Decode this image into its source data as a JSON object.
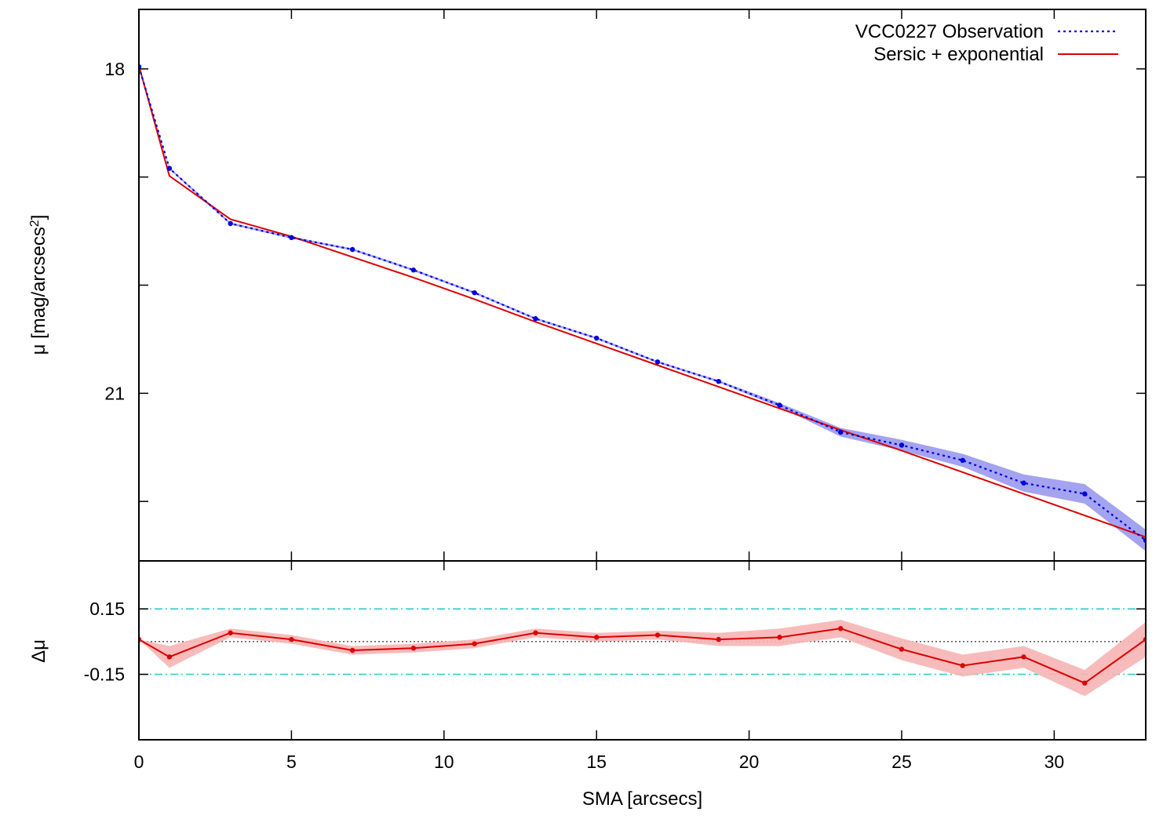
{
  "chart_data": [
    {
      "type": "line",
      "xlabel": "SMA [arcsecs]",
      "ylabel": "μ [mag/arcsecs",
      "ylabel_sup": "2",
      "ylabel_close": "]",
      "xlim": [
        0,
        33
      ],
      "ylim": [
        22.55,
        17.45
      ],
      "y_inverted": true,
      "x_ticks": [
        0,
        5,
        10,
        15,
        20,
        25,
        30
      ],
      "x_tick_labels": [
        "0",
        "5",
        "10",
        "15",
        "20",
        "25",
        "30"
      ],
      "y_ticks": [
        18,
        19,
        20,
        21,
        22
      ],
      "y_tick_labels": [
        "18",
        "",
        "",
        "21",
        ""
      ],
      "legend_position": "top-right",
      "series": [
        {
          "name": "VCC0227 Observation",
          "style": "dotted-with-points",
          "color": "#0000dd",
          "band_color": "#9999ee",
          "x": [
            0,
            1,
            3,
            5,
            7,
            9,
            11,
            13,
            15,
            17,
            19,
            21,
            23,
            25,
            27,
            29,
            31,
            33
          ],
          "y": [
            17.98,
            18.92,
            19.43,
            19.56,
            19.67,
            19.86,
            20.07,
            20.31,
            20.49,
            20.71,
            20.89,
            21.11,
            21.36,
            21.48,
            21.62,
            21.83,
            21.93,
            22.36
          ],
          "err": [
            0.01,
            0.01,
            0.01,
            0.01,
            0.01,
            0.01,
            0.01,
            0.01,
            0.01,
            0.01,
            0.01,
            0.02,
            0.04,
            0.05,
            0.06,
            0.08,
            0.09,
            0.1
          ]
        },
        {
          "name": "Sersic + exponential",
          "style": "solid",
          "color": "#dd0000",
          "x": [
            0,
            1,
            3,
            5,
            7,
            9,
            11,
            13,
            15,
            17,
            19,
            21,
            23,
            25,
            27,
            29,
            31,
            33
          ],
          "y": [
            17.97,
            18.99,
            19.39,
            19.55,
            19.74,
            19.93,
            20.13,
            20.34,
            20.54,
            20.74,
            20.94,
            21.14,
            21.34,
            21.53,
            21.73,
            21.93,
            22.13,
            22.33
          ]
        }
      ]
    },
    {
      "type": "line",
      "ylabel": "Δμ",
      "xlim": [
        0,
        33
      ],
      "ylim": [
        -0.45,
        0.37
      ],
      "x_ticks": [
        0,
        5,
        10,
        15,
        20,
        25,
        30
      ],
      "y_ticks": [
        0.15,
        -0.15
      ],
      "y_tick_labels": [
        "0.15",
        "-0.15"
      ],
      "reference_lines": [
        {
          "value": 0.15,
          "style": "dash-dot",
          "color": "#33cccc"
        },
        {
          "value": -0.15,
          "style": "dash-dot",
          "color": "#33cccc"
        },
        {
          "value": 0.0,
          "style": "dotted",
          "color": "#000000"
        }
      ],
      "series": [
        {
          "style": "solid-with-points",
          "color": "#dd0000",
          "band_color": "#f7b4b4",
          "x": [
            0,
            1,
            3,
            5,
            7,
            9,
            11,
            13,
            15,
            17,
            19,
            21,
            23,
            25,
            27,
            29,
            31,
            33
          ],
          "y": [
            0.01,
            -0.07,
            0.04,
            0.01,
            -0.04,
            -0.03,
            -0.01,
            0.04,
            0.02,
            0.03,
            0.01,
            0.02,
            0.06,
            -0.035,
            -0.11,
            -0.07,
            -0.19,
            0.01
          ],
          "err": [
            0.0,
            0.05,
            0.02,
            0.02,
            0.02,
            0.02,
            0.02,
            0.02,
            0.02,
            0.02,
            0.03,
            0.04,
            0.04,
            0.05,
            0.05,
            0.05,
            0.06,
            0.08
          ]
        }
      ]
    }
  ]
}
